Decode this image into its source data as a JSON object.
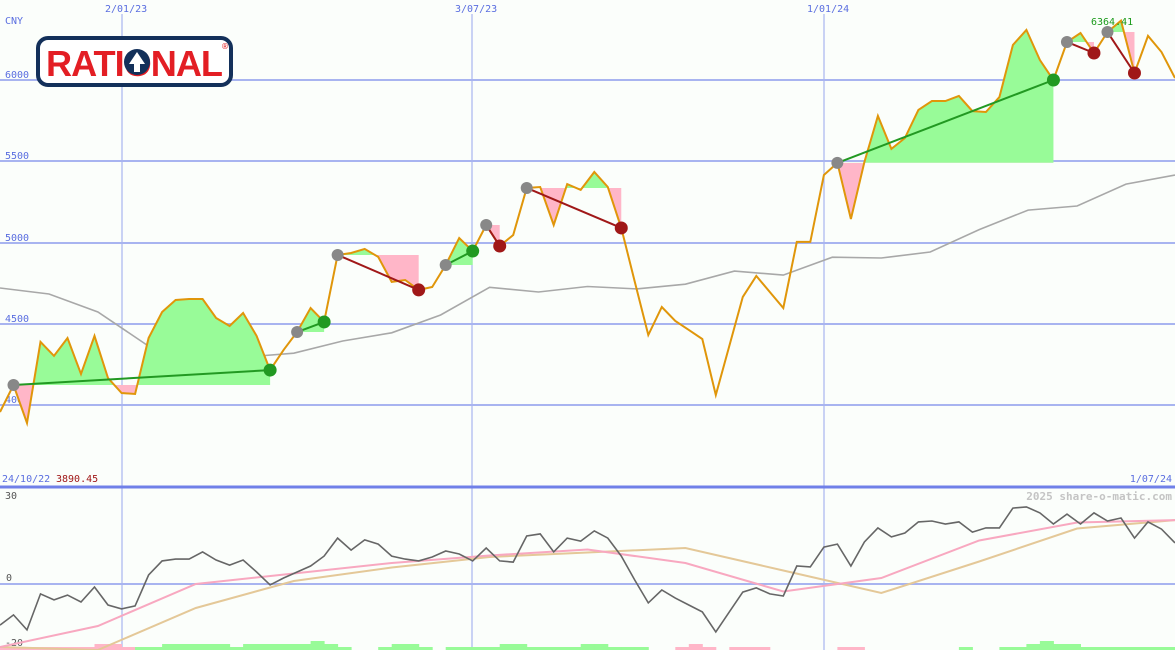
{
  "logo": {
    "text": "RATIONAL",
    "registered": "®",
    "brand_red": "#e31e24",
    "brand_navy": "#13305a"
  },
  "currency": "CNY",
  "x_ticks": [
    "2/01/23",
    "3/07/23",
    "1/01/24"
  ],
  "start_date": "24/10/22",
  "end_date": "1/07/24",
  "watermark": "2025 share-o-matic.com",
  "colors": {
    "price": "#e0960a",
    "moving_average": "#a8a8a8",
    "up_fill": "#98fb98",
    "down_fill": "#ffb6c8",
    "up_trend": "#229922",
    "down_trend": "#a01818",
    "grid": "#a8b4f0",
    "axis_label": "#5a6ee0"
  },
  "chart_data": [
    {
      "type": "line",
      "ylabel": "CNY",
      "y_ticks": [
        "4000",
        "4500",
        "5000",
        "5500",
        "6000"
      ],
      "ylim": [
        3800,
        6500
      ],
      "grid": true,
      "max_label": "6364.41",
      "min_label": "3890.45",
      "price": [
        3958,
        4124,
        3890.45,
        4389,
        4303,
        4413,
        4192,
        4426,
        4167,
        4075,
        4069,
        4413,
        4573,
        4647,
        4653,
        4653,
        4536,
        4487,
        4567,
        4426,
        4216,
        4340,
        4450,
        4598,
        4512,
        4924,
        4936,
        4961,
        4912,
        4758,
        4770,
        4709,
        4727,
        4862,
        5028,
        4948,
        5108,
        4979,
        5047,
        5336,
        5342,
        5108,
        5360,
        5324,
        5434,
        5342,
        5090,
        4758,
        4432,
        4604,
        4518,
        4463,
        4407,
        4063,
        4364,
        4666,
        4795,
        4696,
        4598,
        5004,
        5004,
        5416,
        5490,
        5145,
        5496,
        5779,
        5576,
        5643,
        5816,
        5871,
        5871,
        5902,
        5809,
        5803,
        5895,
        6215,
        6308,
        6123,
        6000,
        6234,
        6289,
        6166,
        6295,
        6364.41,
        6043,
        6271,
        6172,
        6012
      ],
      "moving_average": [
        4721,
        4684,
        4573,
        4370,
        4320,
        4296,
        4320,
        4395,
        4445,
        4555,
        4725,
        4696,
        4730,
        4715,
        4744,
        4825,
        4800,
        4910,
        4905,
        4942,
        5080,
        5200,
        5225,
        5360,
        5416
      ],
      "signals": [
        {
          "start": 1,
          "end": 20,
          "direction": "up"
        },
        {
          "start": 22,
          "end": 24,
          "direction": "up"
        },
        {
          "start": 25,
          "end": 31,
          "direction": "down"
        },
        {
          "start": 33,
          "end": 35,
          "direction": "up"
        },
        {
          "start": 36,
          "end": 37,
          "direction": "down"
        },
        {
          "start": 39,
          "end": 46,
          "direction": "down"
        },
        {
          "start": 62,
          "end": 78,
          "direction": "up"
        },
        {
          "start": 79,
          "end": 81,
          "direction": "down"
        },
        {
          "start": 82,
          "end": 84,
          "direction": "down"
        }
      ]
    },
    {
      "type": "line",
      "y_ticks": [
        "30",
        "0",
        "-20"
      ],
      "ylim": [
        -22,
        33
      ],
      "momentum": [
        -13.7,
        -10.3,
        -15.3,
        -3.3,
        -5.3,
        -3.7,
        -6,
        -1,
        -7,
        -8.3,
        -7.3,
        3,
        7.7,
        8.3,
        8.3,
        10.7,
        8,
        6.3,
        8,
        4,
        -0.3,
        2,
        4,
        6,
        9.3,
        15.3,
        11.3,
        14.7,
        13.3,
        9.3,
        8.3,
        7.7,
        9,
        11,
        10,
        7.7,
        12,
        7.7,
        7.3,
        16,
        16.7,
        10.7,
        15.3,
        14.3,
        17.7,
        15.3,
        9.3,
        1.3,
        -6.3,
        -2,
        -4.7,
        -7,
        -9.3,
        -16,
        -9.3,
        -2.7,
        -1.3,
        -3.3,
        -4,
        6,
        5.7,
        12.3,
        13.3,
        6,
        14,
        18.7,
        15.7,
        17,
        20.7,
        21,
        20,
        20.7,
        17.3,
        18.7,
        18.7,
        25.3,
        25.7,
        23.7,
        20,
        23.3,
        20,
        23.7,
        21,
        22,
        15.3,
        20.7,
        18.3,
        13.7
      ],
      "fast_average": [
        -21,
        -14,
        0,
        3.5,
        7,
        9.5,
        11.5,
        7,
        -2.5,
        2,
        14.5,
        20.5,
        21.3
      ],
      "slow_average": [
        -21,
        -22,
        -8,
        1,
        5.5,
        9,
        10.5,
        12,
        4.5,
        -3,
        7.5,
        18.5,
        21.3
      ],
      "histogram": [
        -1,
        -1,
        -1,
        -1,
        -1,
        -1,
        -1,
        -2,
        -2,
        -1,
        1,
        1,
        2,
        2,
        2,
        2,
        2,
        1,
        2,
        2,
        2,
        2,
        2,
        3,
        2,
        1,
        0,
        0,
        1,
        2,
        2,
        1,
        0,
        1,
        1,
        1,
        1,
        2,
        2,
        1,
        1,
        1,
        1,
        2,
        2,
        1,
        1,
        1,
        0,
        0,
        -1,
        -2,
        -1,
        0,
        -1,
        -1,
        -1,
        0,
        0,
        0,
        0,
        0,
        -1,
        -1,
        0,
        0,
        0,
        0,
        0,
        0,
        0,
        1,
        0,
        0,
        1,
        1,
        2,
        3,
        2,
        2,
        1,
        1,
        1,
        1,
        1,
        1,
        1,
        1
      ]
    }
  ]
}
